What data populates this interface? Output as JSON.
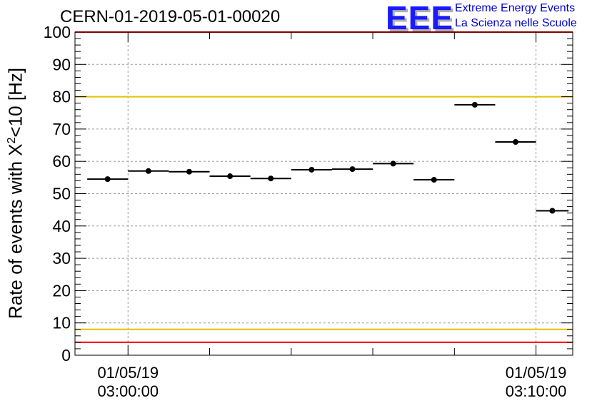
{
  "chart_data": {
    "type": "scatter",
    "title": "CERN-01-2019-05-01-00020",
    "ylabel_prefix": "Rate of events with X",
    "ylabel_sup": "2",
    "ylabel_suffix": "<10 [Hz]",
    "ylim": [
      0,
      100
    ],
    "yticks": [
      "0",
      "10",
      "20",
      "30",
      "40",
      "50",
      "60",
      "70",
      "80",
      "90",
      "100"
    ],
    "xlim_minutes": [
      -1.3,
      10.9
    ],
    "xtick_labels": [
      {
        "date": "01/05/19",
        "time": "03:00:00",
        "minute": 0
      },
      {
        "date": "01/05/19",
        "time": "03:10:00",
        "minute": 10
      }
    ],
    "grid": true,
    "points": [
      {
        "x": -0.5,
        "xerr": 0.5,
        "y": 54.5
      },
      {
        "x": 0.5,
        "xerr": 0.5,
        "y": 57.0
      },
      {
        "x": 1.5,
        "xerr": 0.5,
        "y": 56.8
      },
      {
        "x": 2.5,
        "xerr": 0.5,
        "y": 55.4
      },
      {
        "x": 3.5,
        "xerr": 0.5,
        "y": 54.7
      },
      {
        "x": 4.5,
        "xerr": 0.5,
        "y": 57.4
      },
      {
        "x": 5.5,
        "xerr": 0.5,
        "y": 57.6
      },
      {
        "x": 6.5,
        "xerr": 0.5,
        "y": 59.3
      },
      {
        "x": 7.5,
        "xerr": 0.5,
        "y": 54.3
      },
      {
        "x": 8.5,
        "xerr": 0.5,
        "y": 77.5
      },
      {
        "x": 9.5,
        "xerr": 0.5,
        "y": 66.0
      },
      {
        "x": 10.4,
        "xerr": 0.4,
        "y": 44.7
      }
    ],
    "reference_lines": [
      {
        "y": 100,
        "color": "#ff0000"
      },
      {
        "y": 80,
        "color": "#e8c000"
      },
      {
        "y": 8,
        "color": "#e8c000"
      },
      {
        "y": 4,
        "color": "#ff0000"
      }
    ]
  },
  "logo": {
    "mark": "EEE",
    "line1": "Extreme Energy Events",
    "line2": "La Scienza nelle Scuole",
    "color": "#1a1aff"
  }
}
